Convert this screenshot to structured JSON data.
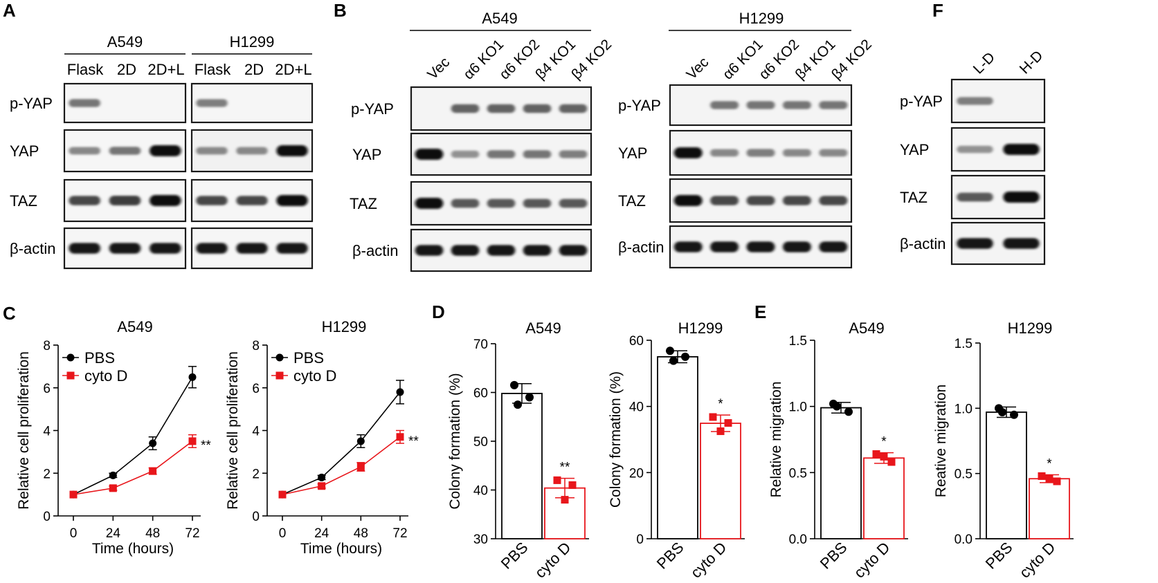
{
  "colors": {
    "pbs": "#000000",
    "cytoD": "#e8161b"
  },
  "westerns": {
    "A": {
      "label": "A",
      "groups": [
        {
          "name": "A549",
          "lanes": [
            "Flask",
            "2D",
            "2D+L"
          ],
          "bands": {
            "pYAP": [
              0.45,
              0,
              0
            ],
            "YAP": [
              0.35,
              0.45,
              1.0
            ],
            "TAZ": [
              0.7,
              0.75,
              1.0
            ],
            "actin": [
              0.95,
              0.95,
              0.95
            ]
          }
        },
        {
          "name": "H1299",
          "lanes": [
            "Flask",
            "2D",
            "2D+L"
          ],
          "bands": {
            "pYAP": [
              0.4,
              0,
              0
            ],
            "YAP": [
              0.35,
              0.35,
              1.0
            ],
            "TAZ": [
              0.7,
              0.7,
              1.0
            ],
            "actin": [
              0.95,
              0.95,
              0.95
            ]
          }
        }
      ],
      "rows": [
        "p-YAP",
        "YAP",
        "TAZ",
        "β-actin"
      ]
    },
    "B": {
      "label": "B",
      "groups": [
        {
          "name": "A549",
          "lanes": [
            "Vec",
            "α6 KO1",
            "α6 KO2",
            "β4 KO1",
            "β4 KO2"
          ],
          "bands": {
            "pYAP": [
              0,
              0.55,
              0.55,
              0.55,
              0.55
            ],
            "YAP": [
              1.0,
              0.3,
              0.45,
              0.45,
              0.4
            ],
            "TAZ": [
              1.0,
              0.6,
              0.6,
              0.6,
              0.6
            ],
            "actin": [
              0.95,
              0.95,
              0.95,
              0.95,
              0.95
            ]
          }
        },
        {
          "name": "H1299",
          "lanes": [
            "Vec",
            "α6 KO1",
            "α6 KO2",
            "β4 KO1",
            "β4 KO2"
          ],
          "bands": {
            "pYAP": [
              0,
              0.45,
              0.45,
              0.45,
              0.45
            ],
            "YAP": [
              1.0,
              0.35,
              0.4,
              0.35,
              0.35
            ],
            "TAZ": [
              1.0,
              0.7,
              0.7,
              0.7,
              0.7
            ],
            "actin": [
              0.95,
              0.95,
              0.95,
              0.95,
              0.95
            ]
          }
        }
      ],
      "rows": [
        "p-YAP",
        "YAP",
        "TAZ",
        "β-actin"
      ]
    },
    "F": {
      "label": "F",
      "lanes": [
        "L-D",
        "H-D"
      ],
      "bands": {
        "pYAP": [
          0.4,
          0
        ],
        "YAP": [
          0.3,
          1.0
        ],
        "TAZ": [
          0.6,
          1.0
        ],
        "actin": [
          0.95,
          0.95
        ]
      },
      "rows": [
        "p-YAP",
        "YAP",
        "TAZ",
        "β-actin"
      ]
    }
  },
  "chart_data": [
    {
      "panel": "C",
      "type": "line",
      "title": "A549",
      "xlabel": "Time (hours)",
      "ylabel": "Relative cell proliferation",
      "x": [
        0,
        24,
        48,
        72
      ],
      "xlim": [
        0,
        72
      ],
      "ylim": [
        0,
        8
      ],
      "xticks": [
        "0",
        "24",
        "48",
        "72"
      ],
      "yticks": [
        "0",
        "2",
        "4",
        "6",
        "8"
      ],
      "legend": "top-left",
      "series": [
        {
          "name": "PBS",
          "values": [
            1.0,
            1.9,
            3.4,
            6.5
          ],
          "errors": [
            0.05,
            0.1,
            0.3,
            0.5
          ]
        },
        {
          "name": "cyto D",
          "values": [
            1.0,
            1.3,
            2.1,
            3.5
          ],
          "errors": [
            0.05,
            0.1,
            0.15,
            0.3
          ]
        }
      ],
      "annotation": "**"
    },
    {
      "panel": "C",
      "type": "line",
      "title": "H1299",
      "xlabel": "Time (hours)",
      "ylabel": "Relative cell proliferation",
      "x": [
        0,
        24,
        48,
        72
      ],
      "xlim": [
        0,
        72
      ],
      "ylim": [
        0,
        8
      ],
      "xticks": [
        "0",
        "24",
        "48",
        "72"
      ],
      "yticks": [
        "0",
        "2",
        "4",
        "6",
        "8"
      ],
      "legend": "top-left",
      "series": [
        {
          "name": "PBS",
          "values": [
            1.0,
            1.8,
            3.5,
            5.8
          ],
          "errors": [
            0.05,
            0.1,
            0.3,
            0.55
          ]
        },
        {
          "name": "cyto D",
          "values": [
            1.0,
            1.4,
            2.3,
            3.7
          ],
          "errors": [
            0.05,
            0.1,
            0.2,
            0.3
          ]
        }
      ],
      "annotation": "**"
    },
    {
      "panel": "D",
      "type": "bar",
      "title": "A549",
      "ylabel": "Colony formation (%)",
      "categories": [
        "PBS",
        "cyto D"
      ],
      "values": [
        59.8,
        40.4
      ],
      "errors": [
        2.0,
        2.0
      ],
      "points": [
        [
          61.5,
          59.0,
          57.5
        ],
        [
          42.0,
          41.0,
          38.0
        ]
      ],
      "ylim": [
        30,
        70
      ],
      "yticks": [
        "30",
        "40",
        "50",
        "60",
        "70"
      ],
      "annotation": "**"
    },
    {
      "panel": "D",
      "type": "bar",
      "title": "H1299",
      "ylabel": "Colony formation (%)",
      "categories": [
        "PBS",
        "cyto D"
      ],
      "values": [
        55.0,
        34.9
      ],
      "errors": [
        1.8,
        2.5
      ],
      "points": [
        [
          56.8,
          55.0,
          53.8
        ],
        [
          36.8,
          35.0,
          32.5
        ]
      ],
      "ylim": [
        0,
        60
      ],
      "yticks": [
        "0",
        "20",
        "40",
        "60"
      ],
      "annotation": "*"
    },
    {
      "panel": "E",
      "type": "bar",
      "title": "A549",
      "ylabel": "Relative migration",
      "categories": [
        "PBS",
        "cyto D"
      ],
      "values": [
        0.99,
        0.61
      ],
      "errors": [
        0.04,
        0.04
      ],
      "points": [
        [
          1.02,
          0.96,
          1.0
        ],
        [
          0.64,
          0.58,
          0.62
        ]
      ],
      "ylim": [
        0,
        1.5
      ],
      "yticks": [
        "0.0",
        "0.5",
        "1.0",
        "1.5"
      ],
      "annotation": "*"
    },
    {
      "panel": "E",
      "type": "bar",
      "title": "H1299",
      "ylabel": "Reative migration",
      "categories": [
        "PBS",
        "cyto D"
      ],
      "values": [
        0.97,
        0.46
      ],
      "errors": [
        0.04,
        0.03
      ],
      "points": [
        [
          1.0,
          0.95,
          0.97
        ],
        [
          0.48,
          0.44,
          0.46
        ]
      ],
      "ylim": [
        0,
        1.5
      ],
      "yticks": [
        "0.0",
        "0.5",
        "1.0",
        "1.5"
      ],
      "annotation": "*"
    }
  ],
  "panel_labels": {
    "C": "C",
    "D": "D",
    "E": "E"
  }
}
